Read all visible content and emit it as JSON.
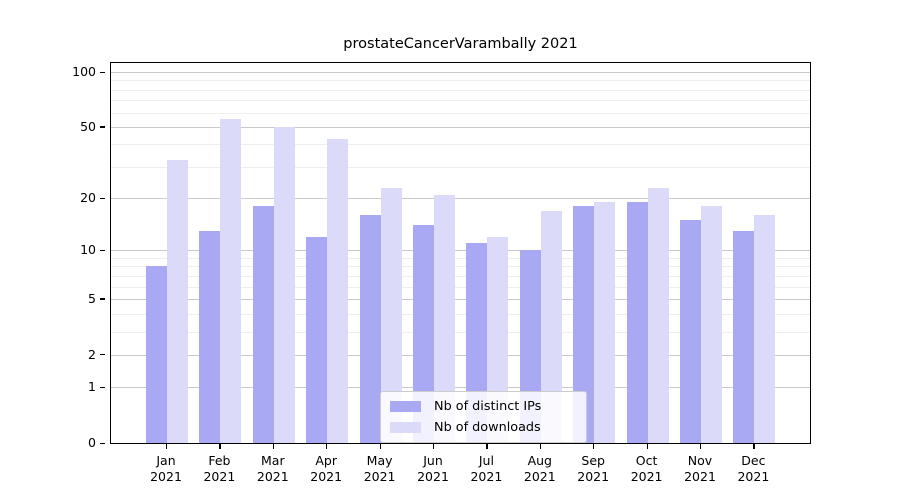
{
  "title": "prostateCancerVarambally 2021",
  "chart_data": {
    "type": "bar",
    "title": "prostateCancerVarambally 2021",
    "categories": [
      "Jan",
      "Feb",
      "Mar",
      "Apr",
      "May",
      "Jun",
      "Jul",
      "Aug",
      "Sep",
      "Oct",
      "Nov",
      "Dec"
    ],
    "x_tick_year": "2021",
    "series": [
      {
        "name": "Nb of distinct IPs",
        "color": "#a9a9f3",
        "values": [
          8,
          13,
          18,
          12,
          16,
          14,
          11,
          10,
          18,
          19,
          15,
          13
        ]
      },
      {
        "name": "Nb of downloads",
        "color": "#dbdbf9",
        "values": [
          33,
          55,
          50,
          43,
          23,
          21,
          12,
          17,
          19,
          23,
          18,
          16
        ]
      }
    ],
    "xlabel": "",
    "ylabel": "",
    "yscale": "symlog",
    "ylim": [
      0,
      100
    ],
    "yticks": [
      0,
      1,
      2,
      5,
      10,
      20,
      50,
      100
    ],
    "minor_yticks": [
      3,
      4,
      6,
      7,
      8,
      9,
      30,
      40,
      60,
      70,
      80,
      90
    ],
    "grid": true,
    "legend": {
      "position": "lower center",
      "entries": [
        "Nb of distinct IPs",
        "Nb of downloads"
      ]
    },
    "colors": {
      "major_grid": "#c9c9c9",
      "minor_grid": "#efeded",
      "spine": "#000000",
      "background": "#ffffff"
    }
  }
}
